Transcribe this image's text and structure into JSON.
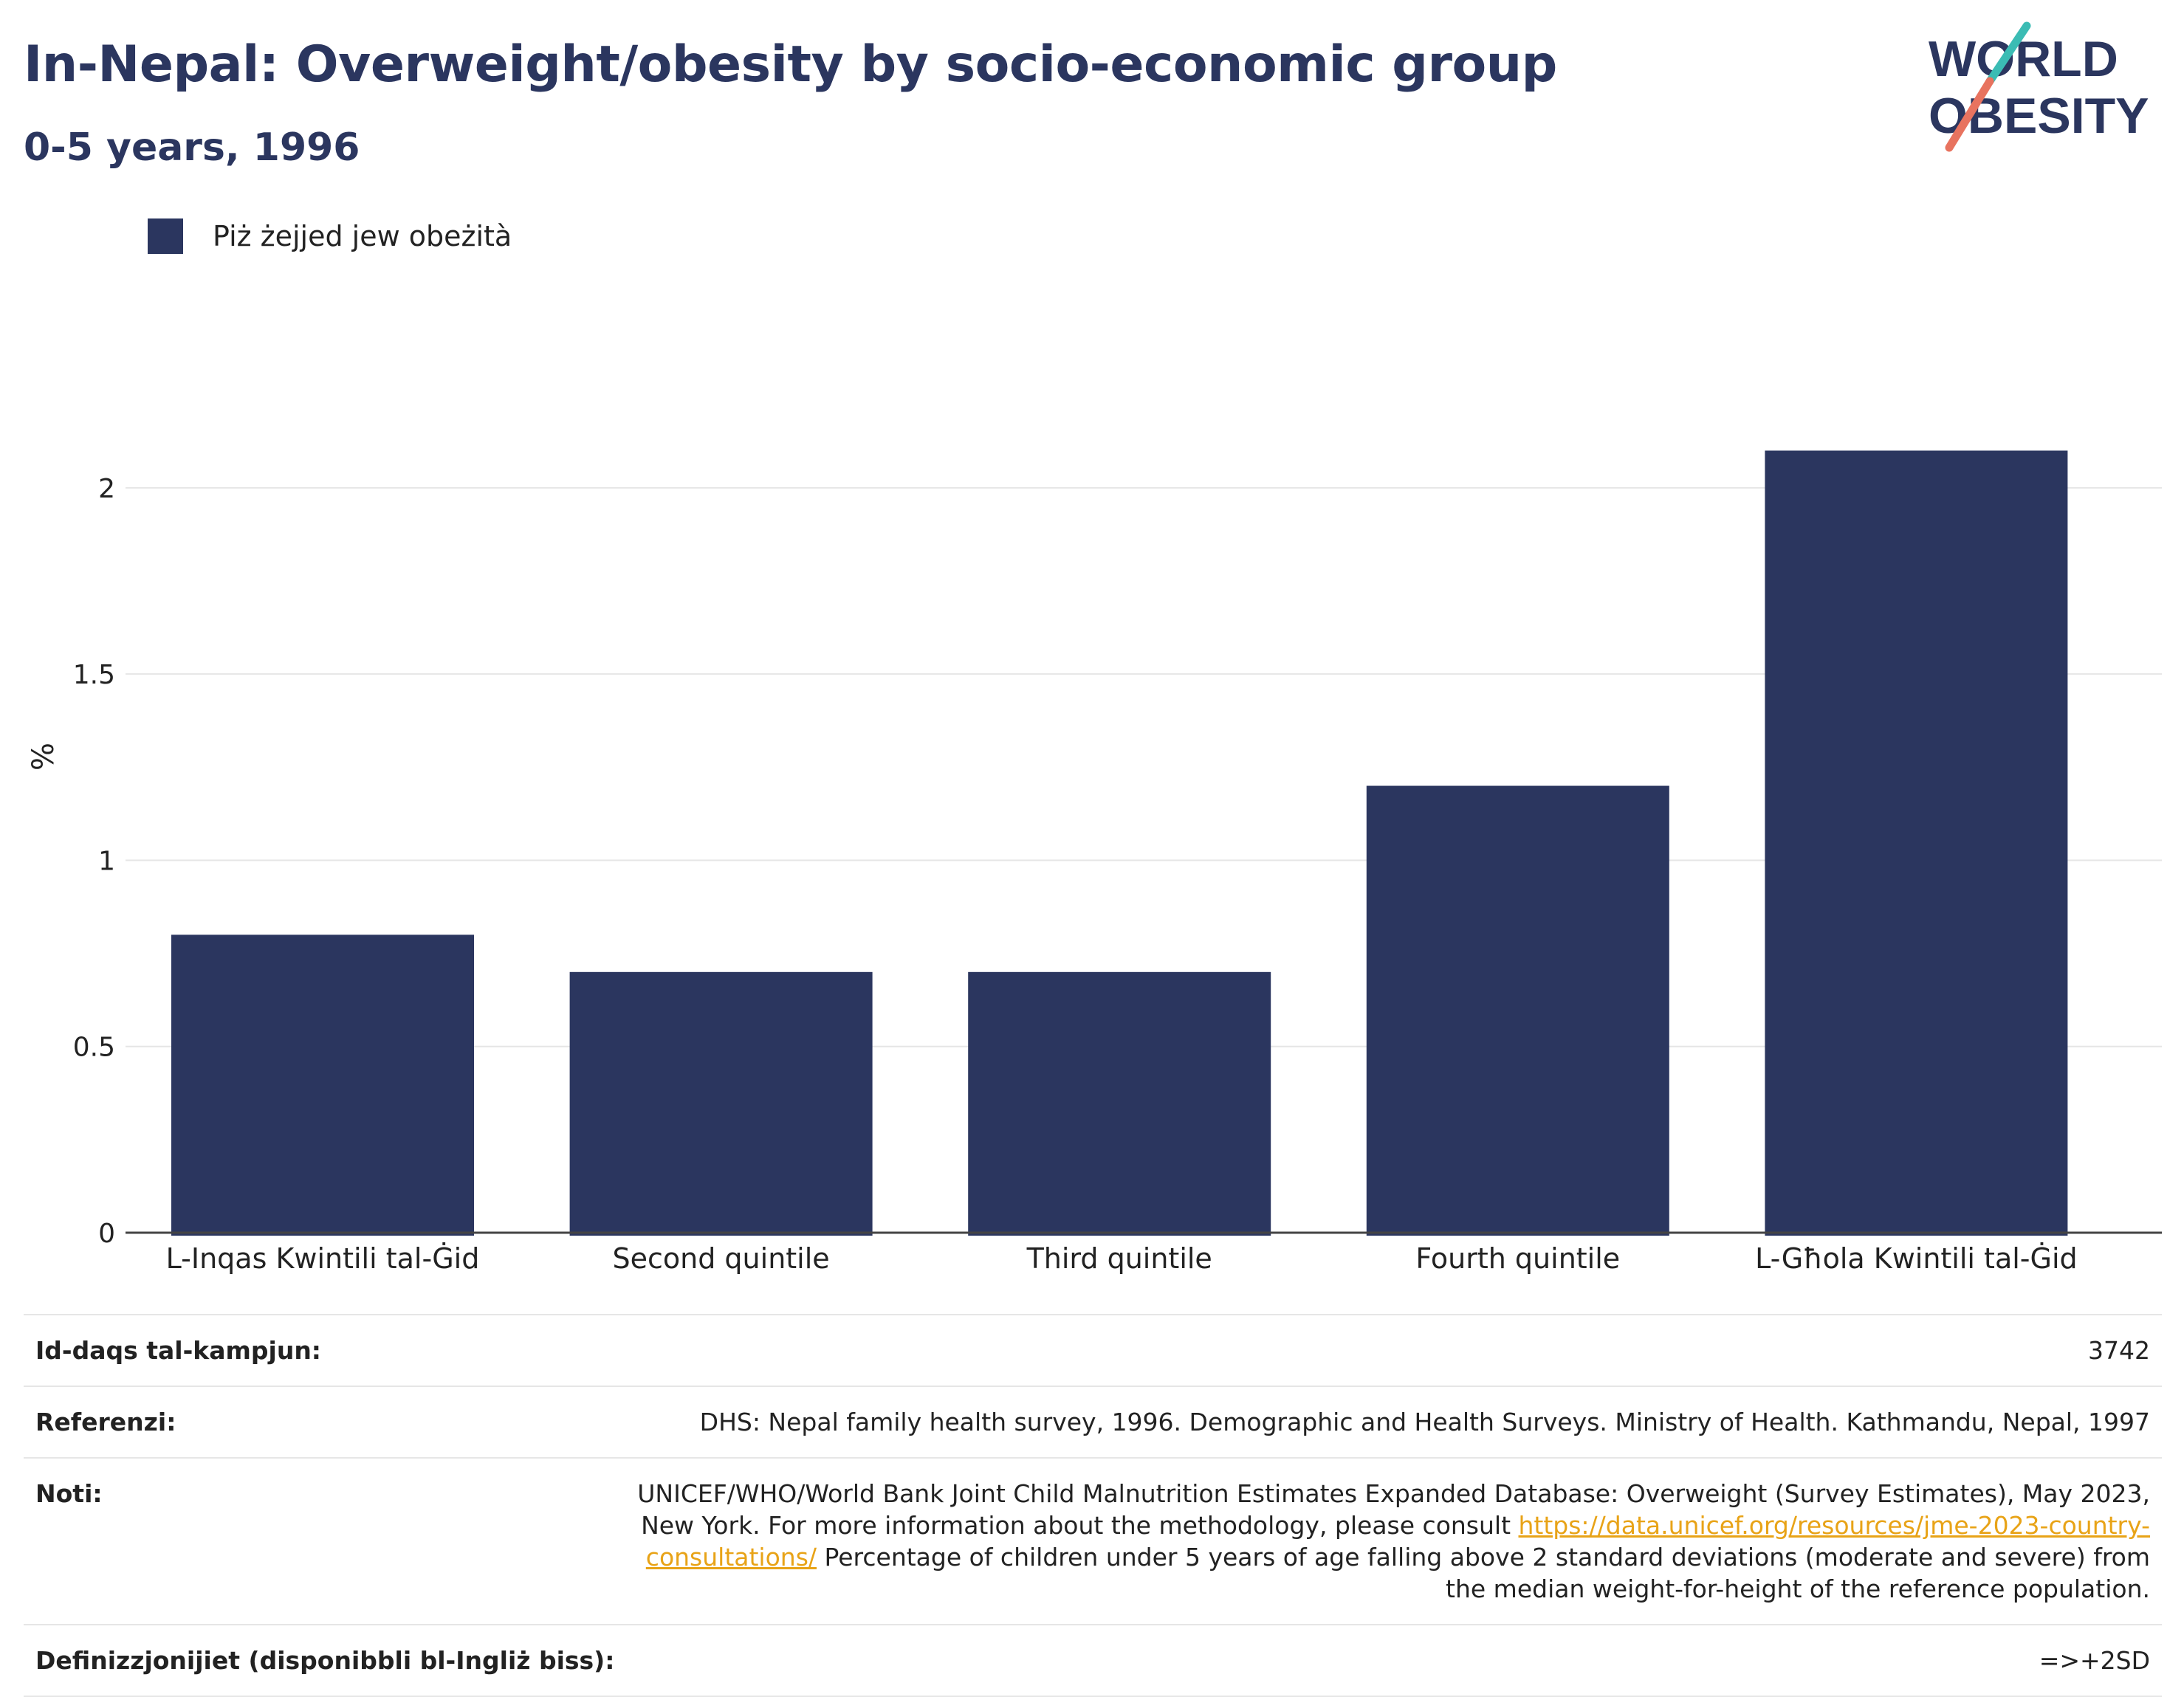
{
  "title": "In-Nepal: Overweight/obesity by socio-economic group",
  "subtitle": "0-5 years, 1996",
  "logo": {
    "line1": "WORLD",
    "line2": "OBESITY"
  },
  "colors": {
    "bar": "#2b365f",
    "title": "#2b365f",
    "link": "#e8a317",
    "logo_teal": "#3bbcb4",
    "logo_coral": "#e8735f"
  },
  "chart_data": {
    "type": "bar",
    "categories": [
      "L-Inqas Kwintili tal-Ġid",
      "Second quintile",
      "Third quintile",
      "Fourth quintile",
      "L-Għola Kwintili tal-Ġid"
    ],
    "series": [
      {
        "name": "Piż żejjed jew obeżità",
        "values": [
          0.8,
          0.7,
          0.7,
          1.2,
          2.1
        ]
      }
    ],
    "ylabel": "%",
    "ylim": [
      0,
      2.2
    ],
    "yticks": [
      0,
      0.5,
      1,
      1.5,
      2
    ],
    "ytick_labels": [
      "0",
      "0.5",
      "1",
      "1.5",
      "2"
    ],
    "grid": true,
    "legend_position": "top-left"
  },
  "info": {
    "sample_label": "Id-daqs tal-kampjun:",
    "sample_value": "3742",
    "references_label": "Referenzi:",
    "references_value": "DHS: Nepal family health survey, 1996. Demographic and Health Surveys. Ministry of Health. Kathmandu, Nepal, 1997",
    "notes_label": "Noti:",
    "notes_text1": "UNICEF/WHO/World Bank Joint Child Malnutrition Estimates Expanded Database: Overweight (Survey Estimates), May 2023, New York. For more information about the methodology, please consult ",
    "notes_link": "https://data.unicef.org/resources/jme-2023-country-consultations/",
    "notes_text2": " Percentage of children under 5 years of age falling above 2 standard deviations (moderate and severe) from the median weight-for-height of the reference population.",
    "definitions_label": "Definizzjonijiet (disponibbli bl-Ingliż biss):",
    "definitions_value": "=>+2SD"
  }
}
